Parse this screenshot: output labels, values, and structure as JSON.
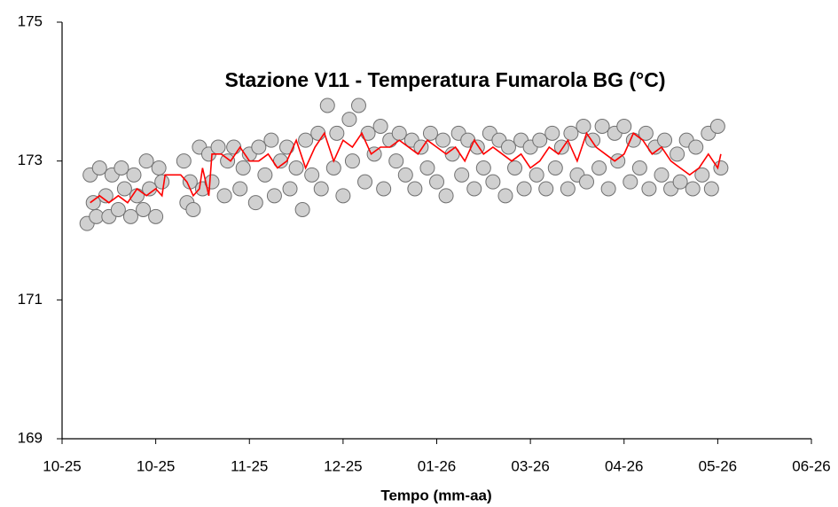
{
  "chart_data": {
    "type": "scatter",
    "title": "Stazione V11 - Temperatura Fumarola BG (°C)",
    "x_label": "Tempo (mm-aa)",
    "xlim": [
      0,
      240
    ],
    "xticks": [
      {
        "value": 0,
        "label": "10-25"
      },
      {
        "value": 30,
        "label": "10-25"
      },
      {
        "value": 60,
        "label": "11-25"
      },
      {
        "value": 90,
        "label": "12-25"
      },
      {
        "value": 120,
        "label": "01-26"
      },
      {
        "value": 150,
        "label": "03-26"
      },
      {
        "value": 180,
        "label": "04-26"
      },
      {
        "value": 210,
        "label": "05-26"
      },
      {
        "value": 240,
        "label": "06-26"
      }
    ],
    "ylim": [
      169,
      175
    ],
    "yticks": [
      169,
      171,
      173,
      175
    ],
    "series": [
      {
        "color": "#d0d0d0",
        "mode": "markers",
        "x": [
          8,
          9,
          10,
          11,
          12,
          14,
          15,
          16,
          18,
          19,
          20,
          22,
          23,
          24,
          26,
          27,
          28,
          30,
          31,
          32,
          39,
          40,
          41,
          42,
          44,
          45,
          47,
          48,
          50,
          52,
          53,
          55,
          57,
          58,
          60,
          62,
          63,
          65,
          67,
          68,
          70,
          72,
          73,
          75,
          77,
          78,
          80,
          82,
          83,
          85,
          87,
          88,
          90,
          92,
          93,
          95,
          97,
          98,
          100,
          102,
          103,
          105,
          107,
          108,
          110,
          112,
          113,
          115,
          117,
          118,
          120,
          122,
          123,
          125,
          127,
          128,
          130,
          132,
          133,
          135,
          137,
          138,
          140,
          142,
          143,
          145,
          147,
          148,
          150,
          152,
          153,
          155,
          157,
          158,
          160,
          162,
          163,
          165,
          167,
          168,
          170,
          172,
          173,
          175,
          177,
          178,
          180,
          182,
          183,
          185,
          187,
          188,
          190,
          192,
          193,
          195,
          197,
          198,
          200,
          202,
          203,
          205,
          207,
          208,
          210,
          211
        ],
        "values": [
          172.1,
          172.8,
          172.4,
          172.2,
          172.9,
          172.5,
          172.2,
          172.8,
          172.3,
          172.9,
          172.6,
          172.2,
          172.8,
          172.5,
          172.3,
          173.0,
          172.6,
          172.2,
          172.9,
          172.7,
          173.0,
          172.4,
          172.7,
          172.3,
          173.2,
          172.6,
          173.1,
          172.7,
          173.2,
          172.5,
          173.0,
          173.2,
          172.6,
          172.9,
          173.1,
          172.4,
          173.2,
          172.8,
          173.3,
          172.5,
          173.0,
          173.2,
          172.6,
          172.9,
          172.3,
          173.3,
          172.8,
          173.4,
          172.6,
          173.8,
          172.9,
          173.4,
          172.5,
          173.6,
          173.0,
          173.8,
          172.7,
          173.4,
          173.1,
          173.5,
          172.6,
          173.3,
          173.0,
          173.4,
          172.8,
          173.3,
          172.6,
          173.2,
          172.9,
          173.4,
          172.7,
          173.3,
          172.5,
          173.1,
          173.4,
          172.8,
          173.3,
          172.6,
          173.2,
          172.9,
          173.4,
          172.7,
          173.3,
          172.5,
          173.2,
          172.9,
          173.3,
          172.6,
          173.2,
          172.8,
          173.3,
          172.6,
          173.4,
          172.9,
          173.2,
          172.6,
          173.4,
          172.8,
          173.5,
          172.7,
          173.3,
          172.9,
          173.5,
          172.6,
          173.4,
          173.0,
          173.5,
          172.7,
          173.3,
          172.9,
          173.4,
          172.6,
          173.2,
          172.8,
          173.3,
          172.6,
          173.1,
          172.7,
          173.3,
          172.6,
          173.2,
          172.8,
          173.4,
          172.6,
          173.5,
          172.9
        ]
      },
      {
        "color": "#ff0000",
        "mode": "line",
        "x": [
          9,
          12,
          15,
          18,
          21,
          24,
          27,
          30,
          32,
          33,
          38,
          40,
          42,
          44,
          45,
          47,
          48,
          51,
          54,
          57,
          60,
          63,
          66,
          69,
          72,
          75,
          78,
          81,
          84,
          87,
          90,
          93,
          96,
          99,
          102,
          105,
          108,
          111,
          114,
          117,
          120,
          123,
          126,
          129,
          132,
          135,
          138,
          141,
          144,
          147,
          150,
          153,
          156,
          159,
          162,
          165,
          168,
          171,
          174,
          177,
          180,
          183,
          186,
          189,
          192,
          195,
          198,
          201,
          204,
          207,
          210,
          211
        ],
        "values": [
          172.4,
          172.5,
          172.4,
          172.5,
          172.4,
          172.6,
          172.5,
          172.6,
          172.5,
          172.8,
          172.8,
          172.7,
          172.5,
          172.6,
          172.9,
          172.5,
          173.1,
          173.1,
          173.0,
          173.2,
          173.0,
          173.0,
          173.1,
          172.9,
          173.0,
          173.3,
          172.9,
          173.2,
          173.4,
          173.0,
          173.3,
          173.2,
          173.4,
          173.1,
          173.2,
          173.2,
          173.3,
          173.2,
          173.1,
          173.3,
          173.2,
          173.1,
          173.2,
          173.0,
          173.3,
          173.1,
          173.2,
          173.1,
          173.0,
          173.1,
          172.9,
          173.0,
          173.2,
          173.1,
          173.3,
          173.0,
          173.4,
          173.2,
          173.1,
          173.0,
          173.1,
          173.4,
          173.3,
          173.1,
          173.2,
          173.0,
          172.9,
          172.8,
          172.9,
          173.1,
          172.9,
          173.1
        ]
      }
    ]
  }
}
